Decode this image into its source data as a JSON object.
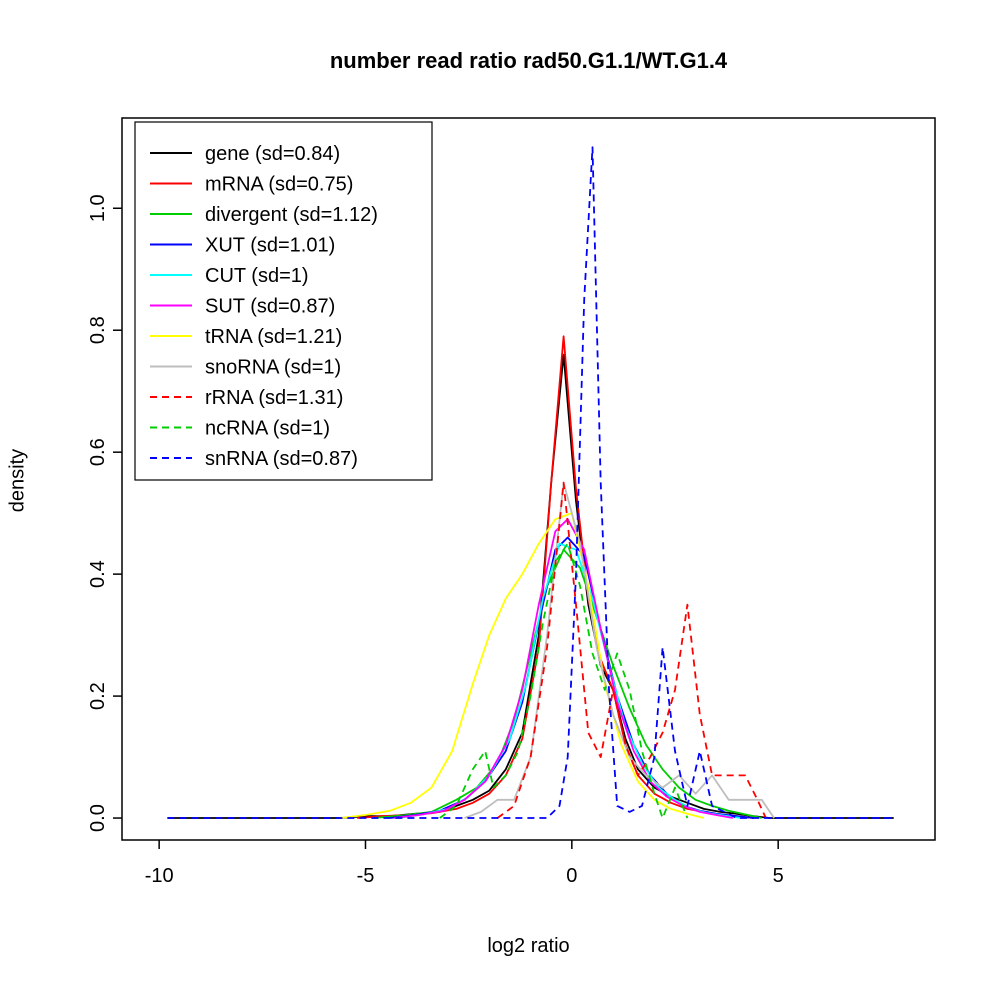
{
  "chart_data": {
    "type": "line",
    "title": "number read ratio rad50.G1.1/WT.G1.4",
    "xlabel": "log2 ratio",
    "ylabel": "density",
    "xticks": [
      -10,
      -5,
      0,
      5
    ],
    "xtick_labels": [
      "-10",
      "-5",
      "0",
      "5"
    ],
    "yticks": [
      0,
      0.2,
      0.4,
      0.6,
      0.8,
      1.0
    ],
    "ytick_labels": [
      "0.0",
      "0.2",
      "0.4",
      "0.6",
      "0.8",
      "1.0"
    ],
    "xlim": [
      -10.9,
      8.8
    ],
    "ylim": [
      -0.036,
      1.148
    ],
    "grid": false,
    "legend_position": "top-left",
    "series": [
      {
        "name": "gene",
        "label": "gene (sd=0.84)",
        "color": "#000000",
        "dash": false,
        "points": [
          [
            -9.8,
            0
          ],
          [
            -5.6,
            0
          ],
          [
            -5,
            0.003
          ],
          [
            -4.4,
            0.003
          ],
          [
            -3.8,
            0.007
          ],
          [
            -3.2,
            0.01
          ],
          [
            -2.8,
            0.02
          ],
          [
            -2.4,
            0.03
          ],
          [
            -2,
            0.045
          ],
          [
            -1.6,
            0.08
          ],
          [
            -1.2,
            0.14
          ],
          [
            -0.8,
            0.3
          ],
          [
            -0.5,
            0.55
          ],
          [
            -0.2,
            0.76
          ],
          [
            0.1,
            0.52
          ],
          [
            0.4,
            0.35
          ],
          [
            0.7,
            0.25
          ],
          [
            1,
            0.21
          ],
          [
            1.3,
            0.13
          ],
          [
            1.6,
            0.08
          ],
          [
            2,
            0.05
          ],
          [
            2.4,
            0.035
          ],
          [
            2.8,
            0.025
          ],
          [
            3.2,
            0.015
          ],
          [
            3.6,
            0.01
          ],
          [
            4,
            0.007
          ],
          [
            4.4,
            0.003
          ],
          [
            4.8,
            0
          ],
          [
            7.8,
            0
          ]
        ]
      },
      {
        "name": "mRNA",
        "label": "mRNA (sd=0.75)",
        "color": "#FF0000",
        "dash": false,
        "points": [
          [
            -5.2,
            0
          ],
          [
            -4.6,
            0.003
          ],
          [
            -4,
            0.005
          ],
          [
            -3.4,
            0.008
          ],
          [
            -2.8,
            0.015
          ],
          [
            -2.4,
            0.025
          ],
          [
            -2,
            0.04
          ],
          [
            -1.6,
            0.07
          ],
          [
            -1.2,
            0.13
          ],
          [
            -0.8,
            0.28
          ],
          [
            -0.5,
            0.55
          ],
          [
            -0.2,
            0.79
          ],
          [
            0.1,
            0.54
          ],
          [
            0.4,
            0.36
          ],
          [
            0.7,
            0.26
          ],
          [
            1,
            0.21
          ],
          [
            1.3,
            0.12
          ],
          [
            1.6,
            0.07
          ],
          [
            2,
            0.04
          ],
          [
            2.4,
            0.025
          ],
          [
            2.8,
            0.015
          ],
          [
            3.2,
            0.01
          ],
          [
            3.6,
            0.005
          ],
          [
            4,
            0.003
          ],
          [
            4.4,
            0
          ]
        ]
      },
      {
        "name": "divergent",
        "label": "divergent (sd=1.12)",
        "color": "#00CD00",
        "dash": false,
        "points": [
          [
            -4.8,
            0
          ],
          [
            -4,
            0.005
          ],
          [
            -3.4,
            0.01
          ],
          [
            -2.8,
            0.03
          ],
          [
            -2.3,
            0.05
          ],
          [
            -1.8,
            0.09
          ],
          [
            -1.4,
            0.16
          ],
          [
            -1,
            0.27
          ],
          [
            -0.6,
            0.38
          ],
          [
            -0.2,
            0.44
          ],
          [
            0.2,
            0.41
          ],
          [
            0.6,
            0.33
          ],
          [
            1,
            0.25
          ],
          [
            1.4,
            0.18
          ],
          [
            1.8,
            0.12
          ],
          [
            2.2,
            0.08
          ],
          [
            2.6,
            0.05
          ],
          [
            3,
            0.03
          ],
          [
            3.4,
            0.02
          ],
          [
            3.8,
            0.012
          ],
          [
            4.2,
            0.006
          ],
          [
            4.6,
            0
          ]
        ]
      },
      {
        "name": "XUT",
        "label": "XUT (sd=1.01)",
        "color": "#0000FF",
        "dash": false,
        "points": [
          [
            -4.4,
            0
          ],
          [
            -3.8,
            0.005
          ],
          [
            -3.2,
            0.012
          ],
          [
            -2.6,
            0.03
          ],
          [
            -2.1,
            0.06
          ],
          [
            -1.6,
            0.11
          ],
          [
            -1.2,
            0.19
          ],
          [
            -0.8,
            0.32
          ],
          [
            -0.4,
            0.44
          ],
          [
            -0.1,
            0.46
          ],
          [
            0.3,
            0.43
          ],
          [
            0.7,
            0.31
          ],
          [
            1.1,
            0.2
          ],
          [
            1.5,
            0.12
          ],
          [
            1.9,
            0.07
          ],
          [
            2.3,
            0.04
          ],
          [
            2.7,
            0.02
          ],
          [
            3.1,
            0.012
          ],
          [
            3.5,
            0.007
          ],
          [
            4,
            0.003
          ],
          [
            4.4,
            0
          ]
        ]
      },
      {
        "name": "CUT",
        "label": "CUT (sd=1)",
        "color": "#00FFFF",
        "dash": false,
        "points": [
          [
            -4.2,
            0
          ],
          [
            -3.6,
            0.006
          ],
          [
            -3,
            0.015
          ],
          [
            -2.5,
            0.035
          ],
          [
            -2,
            0.07
          ],
          [
            -1.5,
            0.13
          ],
          [
            -1.1,
            0.22
          ],
          [
            -0.7,
            0.36
          ],
          [
            -0.3,
            0.45
          ],
          [
            0.1,
            0.44
          ],
          [
            0.5,
            0.36
          ],
          [
            0.9,
            0.25
          ],
          [
            1.3,
            0.15
          ],
          [
            1.7,
            0.09
          ],
          [
            2.1,
            0.05
          ],
          [
            2.5,
            0.03
          ],
          [
            2.9,
            0.015
          ],
          [
            3.3,
            0.008
          ],
          [
            3.7,
            0.004
          ],
          [
            4.1,
            0
          ]
        ]
      },
      {
        "name": "SUT",
        "label": "SUT (sd=0.87)",
        "color": "#FF00FF",
        "dash": false,
        "points": [
          [
            -4.3,
            0
          ],
          [
            -3.7,
            0.005
          ],
          [
            -3.1,
            0.012
          ],
          [
            -2.6,
            0.03
          ],
          [
            -2.1,
            0.06
          ],
          [
            -1.6,
            0.12
          ],
          [
            -1.2,
            0.21
          ],
          [
            -0.8,
            0.35
          ],
          [
            -0.4,
            0.47
          ],
          [
            -0.1,
            0.49
          ],
          [
            0.3,
            0.44
          ],
          [
            0.7,
            0.31
          ],
          [
            1.1,
            0.19
          ],
          [
            1.5,
            0.11
          ],
          [
            1.9,
            0.06
          ],
          [
            2.3,
            0.035
          ],
          [
            2.7,
            0.02
          ],
          [
            3.1,
            0.01
          ],
          [
            3.5,
            0.005
          ],
          [
            3.9,
            0
          ]
        ]
      },
      {
        "name": "tRNA",
        "label": "tRNA (sd=1.21)",
        "color": "#FFFF00",
        "dash": false,
        "points": [
          [
            -5.6,
            0
          ],
          [
            -5,
            0.005
          ],
          [
            -4.4,
            0.012
          ],
          [
            -3.9,
            0.025
          ],
          [
            -3.4,
            0.05
          ],
          [
            -2.9,
            0.11
          ],
          [
            -2.4,
            0.22
          ],
          [
            -2,
            0.3
          ],
          [
            -1.6,
            0.36
          ],
          [
            -1.2,
            0.4
          ],
          [
            -0.8,
            0.45
          ],
          [
            -0.4,
            0.49
          ],
          [
            0,
            0.5
          ],
          [
            0.4,
            0.38
          ],
          [
            0.8,
            0.22
          ],
          [
            1.2,
            0.12
          ],
          [
            1.6,
            0.06
          ],
          [
            2,
            0.03
          ],
          [
            2.4,
            0.015
          ],
          [
            2.8,
            0.007
          ],
          [
            3.2,
            0
          ]
        ]
      },
      {
        "name": "snoRNA",
        "label": "snoRNA (sd=1)",
        "color": "#BEBEBE",
        "dash": false,
        "points": [
          [
            -2.6,
            0
          ],
          [
            -2.2,
            0.01
          ],
          [
            -1.8,
            0.03
          ],
          [
            -1.4,
            0.03
          ],
          [
            -1,
            0.1
          ],
          [
            -0.6,
            0.3
          ],
          [
            -0.2,
            0.55
          ],
          [
            0.2,
            0.45
          ],
          [
            0.6,
            0.28
          ],
          [
            1,
            0.17
          ],
          [
            1.4,
            0.1
          ],
          [
            1.8,
            0.07
          ],
          [
            2.2,
            0.05
          ],
          [
            2.6,
            0.07
          ],
          [
            3,
            0.04
          ],
          [
            3.4,
            0.07
          ],
          [
            3.8,
            0.03
          ],
          [
            4.2,
            0.03
          ],
          [
            4.6,
            0.03
          ],
          [
            4.9,
            0
          ]
        ]
      },
      {
        "name": "rRNA",
        "label": "rRNA (sd=1.31)",
        "color": "#FF0000",
        "dash": true,
        "points": [
          [
            -1.8,
            0
          ],
          [
            -1.4,
            0.02
          ],
          [
            -1,
            0.1
          ],
          [
            -0.6,
            0.28
          ],
          [
            -0.2,
            0.55
          ],
          [
            0.1,
            0.35
          ],
          [
            0.4,
            0.14
          ],
          [
            0.7,
            0.1
          ],
          [
            1,
            0.21
          ],
          [
            1.3,
            0.12
          ],
          [
            1.6,
            0.07
          ],
          [
            1.9,
            0.1
          ],
          [
            2.2,
            0.14
          ],
          [
            2.5,
            0.21
          ],
          [
            2.8,
            0.35
          ],
          [
            3.1,
            0.17
          ],
          [
            3.4,
            0.07
          ],
          [
            3.8,
            0.07
          ],
          [
            4.2,
            0.07
          ],
          [
            4.5,
            0.03
          ],
          [
            4.7,
            0
          ]
        ]
      },
      {
        "name": "ncRNA",
        "label": "ncRNA (sd=1)",
        "color": "#00CD00",
        "dash": true,
        "points": [
          [
            -3.2,
            0
          ],
          [
            -2.8,
            0.02
          ],
          [
            -2.4,
            0.08
          ],
          [
            -2.1,
            0.11
          ],
          [
            -1.9,
            0.05
          ],
          [
            -1.6,
            0.07
          ],
          [
            -1.3,
            0.11
          ],
          [
            -1,
            0.2
          ],
          [
            -0.7,
            0.32
          ],
          [
            -0.4,
            0.42
          ],
          [
            -0.1,
            0.45
          ],
          [
            0.2,
            0.38
          ],
          [
            0.5,
            0.27
          ],
          [
            0.8,
            0.21
          ],
          [
            1.1,
            0.27
          ],
          [
            1.4,
            0.21
          ],
          [
            1.7,
            0.11
          ],
          [
            2,
            0.04
          ],
          [
            2.2,
            0
          ],
          [
            2.5,
            0.05
          ],
          [
            2.8,
            0
          ]
        ]
      },
      {
        "name": "snRNA",
        "label": "snRNA (sd=0.87)",
        "color": "#0000FF",
        "dash": true,
        "points": [
          [
            -9.8,
            0
          ],
          [
            -0.6,
            0
          ],
          [
            -0.3,
            0.02
          ],
          [
            -0.1,
            0.1
          ],
          [
            0.1,
            0.4
          ],
          [
            0.3,
            0.85
          ],
          [
            0.5,
            1.1
          ],
          [
            0.7,
            0.55
          ],
          [
            0.9,
            0.21
          ],
          [
            1.1,
            0.02
          ],
          [
            1.4,
            0.01
          ],
          [
            1.7,
            0.02
          ],
          [
            2,
            0.1
          ],
          [
            2.2,
            0.28
          ],
          [
            2.5,
            0.11
          ],
          [
            2.8,
            0.02
          ],
          [
            3.1,
            0.11
          ],
          [
            3.4,
            0.02
          ],
          [
            3.7,
            0.01
          ],
          [
            4,
            0
          ],
          [
            7.8,
            0
          ]
        ]
      }
    ]
  }
}
